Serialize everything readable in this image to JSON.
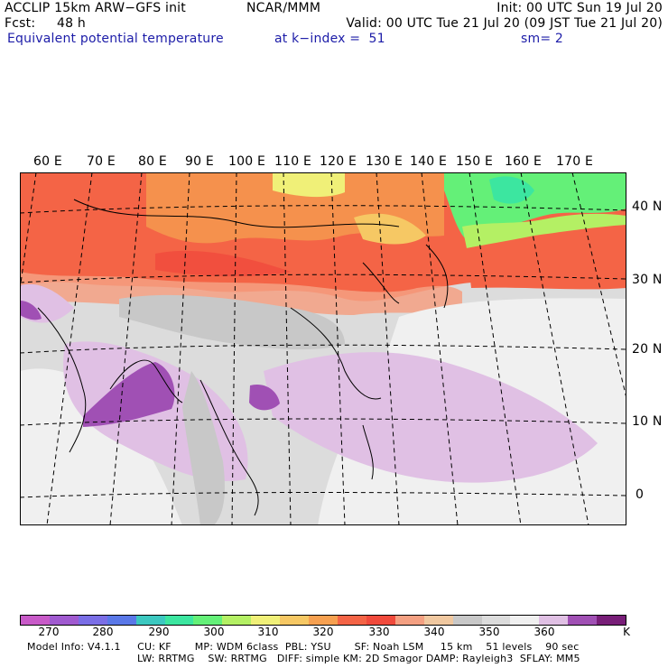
{
  "header": {
    "model_line": "ACCLIP 15km ARW−GFS init",
    "center": "NCAR/MMM",
    "init": "Init: 00 UTC Sun 19 Jul 20",
    "fcst_label": "Fcst:",
    "fcst_value": "48 h",
    "valid": "Valid: 00 UTC Tue 21 Jul 20 (09 JST Tue 21 Jul 20)",
    "field": "Equivalent potential temperature",
    "level": "at k−index =  51",
    "smooth": "sm= 2"
  },
  "map": {
    "lon_labels": [
      "60 E",
      "70 E",
      "80 E",
      "90 E",
      "100 E",
      "110 E",
      "120 E",
      "130 E",
      "140 E",
      "150 E",
      "160 E",
      "170 E"
    ],
    "lat_labels": [
      "40 N",
      "30 N",
      "20 N",
      "10 N",
      "0"
    ]
  },
  "colorbar": {
    "unit": "K",
    "tick_labels": [
      "270",
      "280",
      "290",
      "300",
      "310",
      "320",
      "330",
      "340",
      "350",
      "360"
    ],
    "colors": [
      "#c85ac8",
      "#a05ad0",
      "#7a6ee6",
      "#5a78e8",
      "#3cc8c0",
      "#3ce6a0",
      "#64f078",
      "#b4f064",
      "#f0f078",
      "#f6c864",
      "#f6a050",
      "#f46446",
      "#f04a3c",
      "#f4a082",
      "#f0c8a0",
      "#c8c8c8",
      "#dcdcdc",
      "#f0f0f0",
      "#e0c0e4",
      "#a050b4",
      "#781e78"
    ]
  },
  "footer": {
    "line1": "Model Info: V4.1.1     CU: KF       MP: WDM 6class  PBL: YSU       SF: Noah LSM     15 km    51 levels    90 sec",
    "line2": "LW: RRTMG    SW: RRTMG   DIFF: simple KM: 2D Smagor DAMP: Rayleigh3  SFLAY: MM5"
  }
}
